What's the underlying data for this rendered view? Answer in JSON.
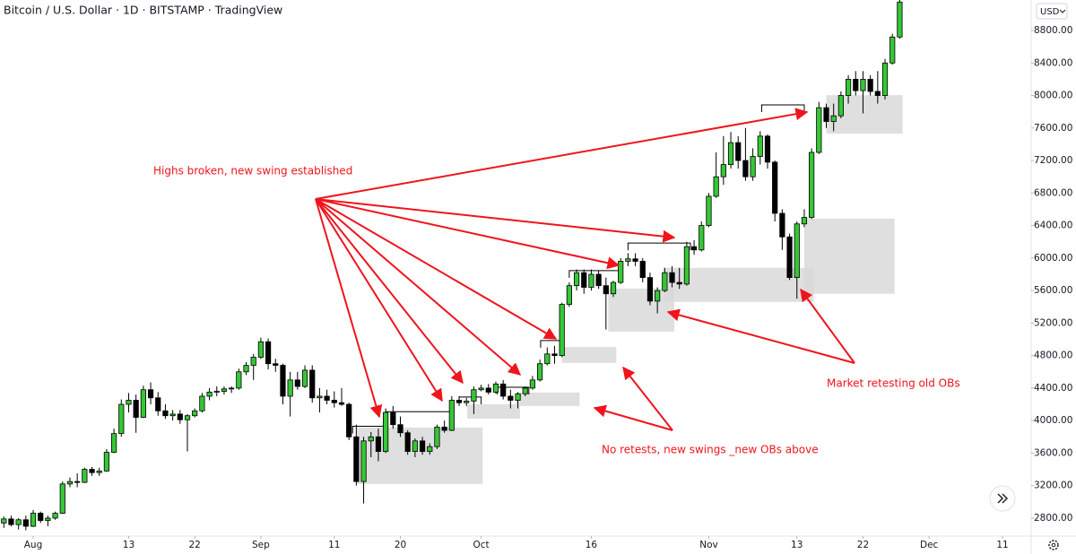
{
  "chart_data": {
    "type": "candlestick",
    "title": "Bitcoin / U.S. Dollar · 1D · BITSTAMP · TradingView",
    "currency": "USD",
    "up_color": "#35c735",
    "down_color": "#000000",
    "x": [
      -4,
      -3,
      -2,
      -1,
      0,
      1,
      2,
      3,
      4,
      5,
      6,
      7,
      8,
      9,
      10,
      11,
      12,
      13,
      14,
      15,
      16,
      17,
      18,
      19,
      20,
      21,
      22,
      23,
      24,
      25,
      26,
      27,
      28,
      29,
      30,
      31,
      32,
      33,
      34,
      35,
      36,
      37,
      38,
      39,
      40,
      41,
      42,
      43,
      44,
      45,
      46,
      47,
      48,
      49,
      50,
      51,
      52,
      53,
      54,
      55,
      56,
      57,
      58,
      59,
      60,
      61,
      62,
      63,
      64,
      65,
      66,
      67,
      68,
      69,
      70,
      71,
      72,
      73,
      74,
      75,
      76,
      77,
      78,
      79,
      80,
      81,
      82,
      83,
      84,
      85,
      86,
      87,
      88,
      89,
      90,
      91,
      92,
      93,
      94,
      95,
      96,
      97,
      98,
      99,
      100,
      101,
      102,
      103,
      104,
      105,
      106,
      107,
      108,
      109,
      110,
      111,
      112,
      113,
      114,
      115,
      116,
      117,
      118
    ],
    "open": [
      2740,
      2790,
      2720,
      2780,
      2700,
      2860,
      2770,
      2800,
      2860,
      3220,
      3250,
      3240,
      3400,
      3360,
      3380,
      3610,
      3840,
      4200,
      4250,
      4040,
      4380,
      4280,
      4120,
      4060,
      4080,
      4010,
      4060,
      4120,
      4300,
      4350,
      4360,
      4390,
      4400,
      4600,
      4680,
      4780,
      4970,
      4700,
      4680,
      4300,
      4500,
      4420,
      4620,
      4280,
      4300,
      4250,
      4220,
      4200,
      3800,
      3250,
      3750,
      3800,
      3620,
      4100,
      3950,
      3850,
      3620,
      3750,
      3620,
      3680,
      3920,
      3880,
      4250,
      4220,
      4240,
      4380,
      4400,
      4350,
      4450,
      4300,
      4250,
      4330,
      4400,
      4500,
      4700,
      4820,
      4800,
      5430,
      5660,
      5820,
      5640,
      5800,
      5660,
      5560,
      5700,
      5960,
      5990,
      5960,
      5760,
      5470,
      5600,
      5820,
      5700,
      5680,
      6140,
      6100,
      6400,
      6760,
      7000,
      7150,
      7420,
      7200,
      7000,
      7250,
      7500,
      7180,
      6550,
      6260,
      5760,
      6420,
      6500,
      7300,
      7850,
      7680,
      7750,
      8000,
      8200,
      8060,
      8200,
      8050,
      8000,
      8400,
      8720
    ],
    "high": [
      2820,
      2830,
      2800,
      2830,
      2900,
      2880,
      2830,
      2880,
      3250,
      3300,
      3350,
      3420,
      3430,
      3420,
      3650,
      3900,
      4260,
      4340,
      4320,
      4430,
      4470,
      4350,
      4200,
      4130,
      4130,
      4080,
      4150,
      4340,
      4400,
      4420,
      4420,
      4420,
      4640,
      4720,
      4820,
      5020,
      5010,
      4760,
      4700,
      4600,
      4600,
      4680,
      4680,
      4400,
      4380,
      4360,
      4400,
      4220,
      3950,
      3800,
      3860,
      3900,
      4150,
      4180,
      4050,
      3880,
      3780,
      3800,
      3720,
      3950,
      4000,
      4300,
      4300,
      4280,
      4420,
      4440,
      4450,
      4480,
      4500,
      4380,
      4350,
      4420,
      4550,
      4750,
      4900,
      4920,
      5450,
      5700,
      5860,
      5860,
      5860,
      5850,
      5760,
      5720,
      6000,
      6060,
      6060,
      6000,
      5820,
      5640,
      5880,
      5900,
      5880,
      6200,
      6220,
      6450,
      6800,
      7300,
      7500,
      7550,
      7500,
      7600,
      7350,
      7560,
      7520,
      7200,
      6600,
      6300,
      6450,
      6600,
      7350,
      7920,
      7900,
      7900,
      8050,
      8250,
      8300,
      8300,
      8250,
      8300,
      8450,
      8760,
      9200
    ],
    "low": [
      2680,
      2700,
      2660,
      2650,
      2690,
      2740,
      2700,
      2780,
      2850,
      3180,
      3180,
      3230,
      3320,
      3320,
      3370,
      3600,
      3800,
      4100,
      3850,
      4030,
      4200,
      4060,
      4020,
      4000,
      3960,
      3620,
      4040,
      4100,
      4250,
      4300,
      4320,
      4340,
      4380,
      4560,
      4500,
      4760,
      4630,
      4600,
      4200,
      4050,
      4380,
      4400,
      4220,
      4100,
      4200,
      4160,
      4180,
      3760,
      3200,
      2980,
      3550,
      3500,
      3600,
      3900,
      3800,
      3580,
      3550,
      3580,
      3580,
      3650,
      3850,
      3870,
      4180,
      4180,
      4080,
      4360,
      4320,
      4330,
      4260,
      4150,
      4150,
      4300,
      4380,
      4480,
      4680,
      4700,
      4780,
      5400,
      5600,
      5560,
      5600,
      5620,
      5120,
      5520,
      5680,
      5900,
      5900,
      5700,
      5420,
      5320,
      5580,
      5640,
      5620,
      5660,
      6040,
      6080,
      6380,
      6740,
      6900,
      7100,
      7100,
      6950,
      6950,
      7150,
      7100,
      6450,
      6100,
      5730,
      5500,
      6380,
      6480,
      7280,
      7600,
      7560,
      7720,
      7900,
      8000,
      7780,
      8000,
      7900,
      7950,
      8380,
      8700
    ],
    "close": [
      2790,
      2720,
      2780,
      2700,
      2860,
      2770,
      2800,
      2860,
      3220,
      3250,
      3240,
      3400,
      3360,
      3380,
      3610,
      3840,
      4200,
      4250,
      4040,
      4380,
      4280,
      4120,
      4060,
      4080,
      4010,
      4060,
      4120,
      4300,
      4350,
      4360,
      4390,
      4400,
      4600,
      4680,
      4780,
      4970,
      4700,
      4680,
      4300,
      4500,
      4420,
      4620,
      4280,
      4300,
      4250,
      4220,
      4200,
      3800,
      3250,
      3750,
      3800,
      3620,
      4100,
      3950,
      3850,
      3620,
      3750,
      3620,
      3680,
      3920,
      3880,
      4250,
      4220,
      4240,
      4380,
      4400,
      4350,
      4450,
      4300,
      4250,
      4330,
      4400,
      4500,
      4700,
      4820,
      4800,
      5430,
      5660,
      5820,
      5640,
      5800,
      5660,
      5560,
      5700,
      5960,
      5990,
      5960,
      5760,
      5470,
      5600,
      5820,
      5700,
      5680,
      6140,
      6100,
      6400,
      6760,
      7000,
      7150,
      7420,
      7200,
      7000,
      7250,
      7500,
      7180,
      6550,
      6260,
      5760,
      6420,
      6500,
      7300,
      7850,
      7680,
      7750,
      8000,
      8200,
      8060,
      8200,
      8050,
      8000,
      8400,
      8720,
      9150
    ],
    "xlim": [
      -4.52,
      135.9
    ],
    "ylim": [
      2579,
      9175
    ],
    "xticks": [
      {
        "value": 0,
        "label": "Aug"
      },
      13,
      22,
      {
        "value": 31,
        "label": "Sep"
      },
      {
        "value": 41,
        "label": "11"
      },
      {
        "value": 50,
        "label": "20"
      },
      {
        "value": 61,
        "label": "Oct"
      },
      {
        "value": 76,
        "label": "16"
      },
      {
        "value": 92,
        "label": "Nov"
      },
      {
        "value": 104,
        "label": "13"
      },
      {
        "value": 113,
        "label": "22"
      },
      {
        "value": 122,
        "label": "Dec"
      },
      {
        "value": 132,
        "label": "11"
      }
    ],
    "yticks": [
      {
        "value": 2800,
        "label": "2800.00"
      },
      {
        "value": 3200,
        "label": "3200.00"
      },
      {
        "value": 3600,
        "label": "3600.00"
      },
      {
        "value": 4000,
        "label": "4000.00"
      },
      {
        "value": 4400,
        "label": "4400.00"
      },
      {
        "value": 4800,
        "label": "4800.00"
      },
      {
        "value": 5200,
        "label": "5200.00"
      },
      {
        "value": 5600,
        "label": "5600.00"
      },
      {
        "value": 6000,
        "label": "6000.00"
      },
      {
        "value": 6400,
        "label": "6400.00"
      },
      {
        "value": 6800,
        "label": "6800.00"
      },
      {
        "value": 7200,
        "label": "7200.00"
      },
      {
        "value": 7600,
        "label": "7600.00"
      },
      {
        "value": 8000,
        "label": "8000.00"
      },
      {
        "value": 8400,
        "label": "8400.00"
      },
      {
        "value": 8800,
        "label": "8800.00"
      }
    ],
    "zones": [
      {
        "x": [
          44.1,
          61.2
        ],
        "y": [
          3220,
          3915
        ]
      },
      {
        "x": [
          59.1,
          66.3
        ],
        "y": [
          4025,
          4200
        ]
      },
      {
        "x": [
          65.7,
          74.4
        ],
        "y": [
          4180,
          4345
        ]
      },
      {
        "x": [
          72.0,
          79.4
        ],
        "y": [
          4710,
          4905
        ]
      },
      {
        "x": [
          78.3,
          87.3
        ],
        "y": [
          5095,
          5625
        ]
      },
      {
        "x": [
          85.8,
          106.3
        ],
        "y": [
          5460,
          5880
        ]
      },
      {
        "x": [
          105.0,
          117.3
        ],
        "y": [
          5560,
          6485
        ]
      },
      {
        "x": [
          108.0,
          118.4
        ],
        "y": [
          7530,
          8005
        ]
      }
    ],
    "swings": [
      {
        "x": [
          43.5,
          48.0
        ],
        "y": 3930
      },
      {
        "x": [
          48.0,
          57.0
        ],
        "y": 4110
      },
      {
        "x": [
          58.0,
          61.0
        ],
        "y": 4290
      },
      {
        "x": [
          63.2,
          67.5
        ],
        "y": 4410
      },
      {
        "x": [
          69.1,
          72.0
        ],
        "y": 4985
      },
      {
        "x": [
          73.0,
          80.0
        ],
        "y": 5845
      },
      {
        "x": [
          81.0,
          89.5
        ],
        "y": 6185
      },
      {
        "x": [
          99.2,
          105.0
        ],
        "y": 7885
      }
    ],
    "annotations": [
      "Highs broken, new swing established",
      "No retests, new swings _new OBs above",
      "Market retesting old OBs"
    ],
    "zone_color": "#d9d9d9"
  }
}
